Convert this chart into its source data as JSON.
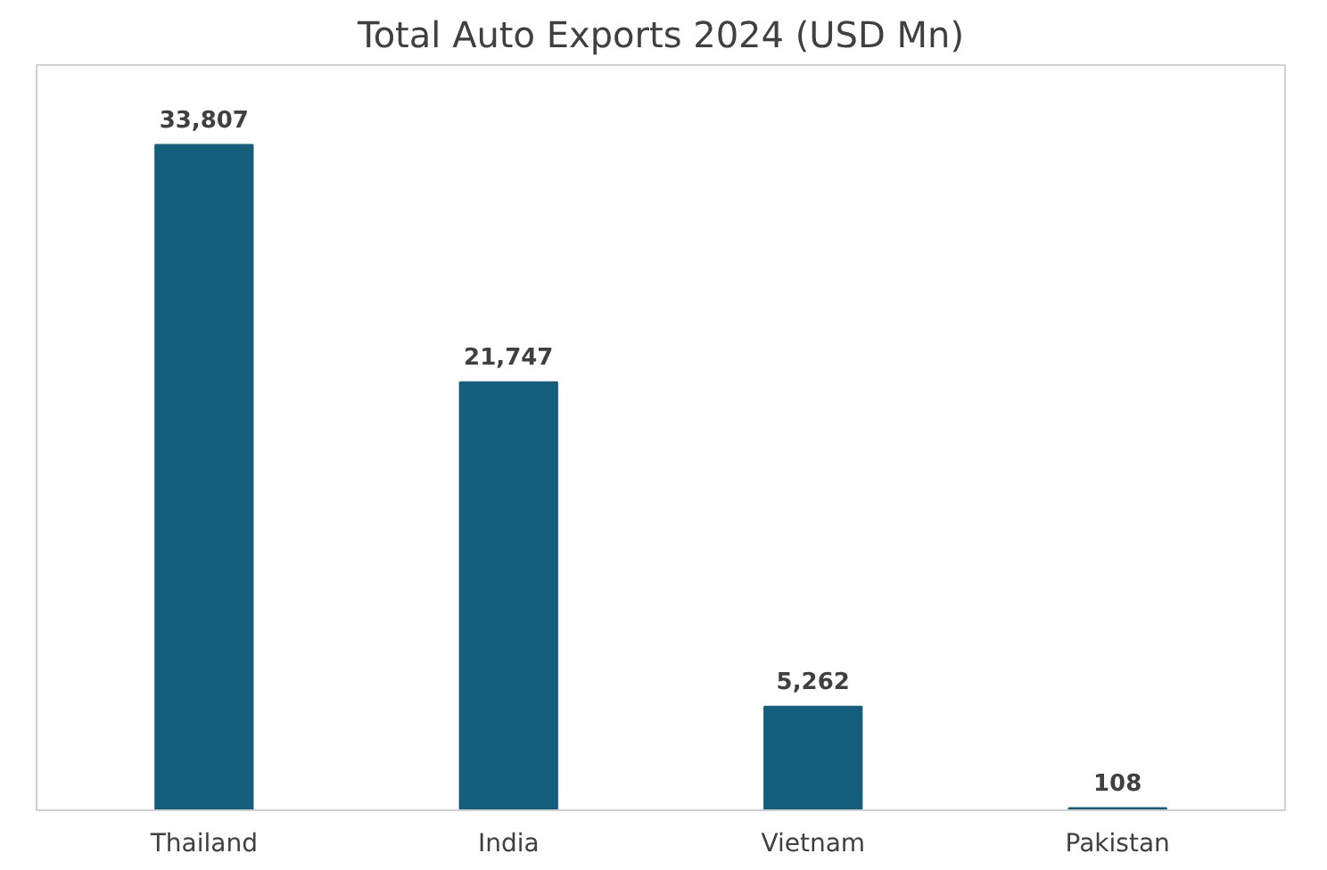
{
  "chart_data": {
    "type": "bar",
    "title": "Total Auto Exports 2024 (USD Mn)",
    "categories": [
      "Thailand",
      "India",
      "Vietnam",
      "Pakistan"
    ],
    "values": [
      33807,
      21747,
      5262,
      108
    ],
    "value_labels": [
      "33,807",
      "21,747",
      "5,262",
      "108"
    ],
    "color": "#155e7c"
  }
}
